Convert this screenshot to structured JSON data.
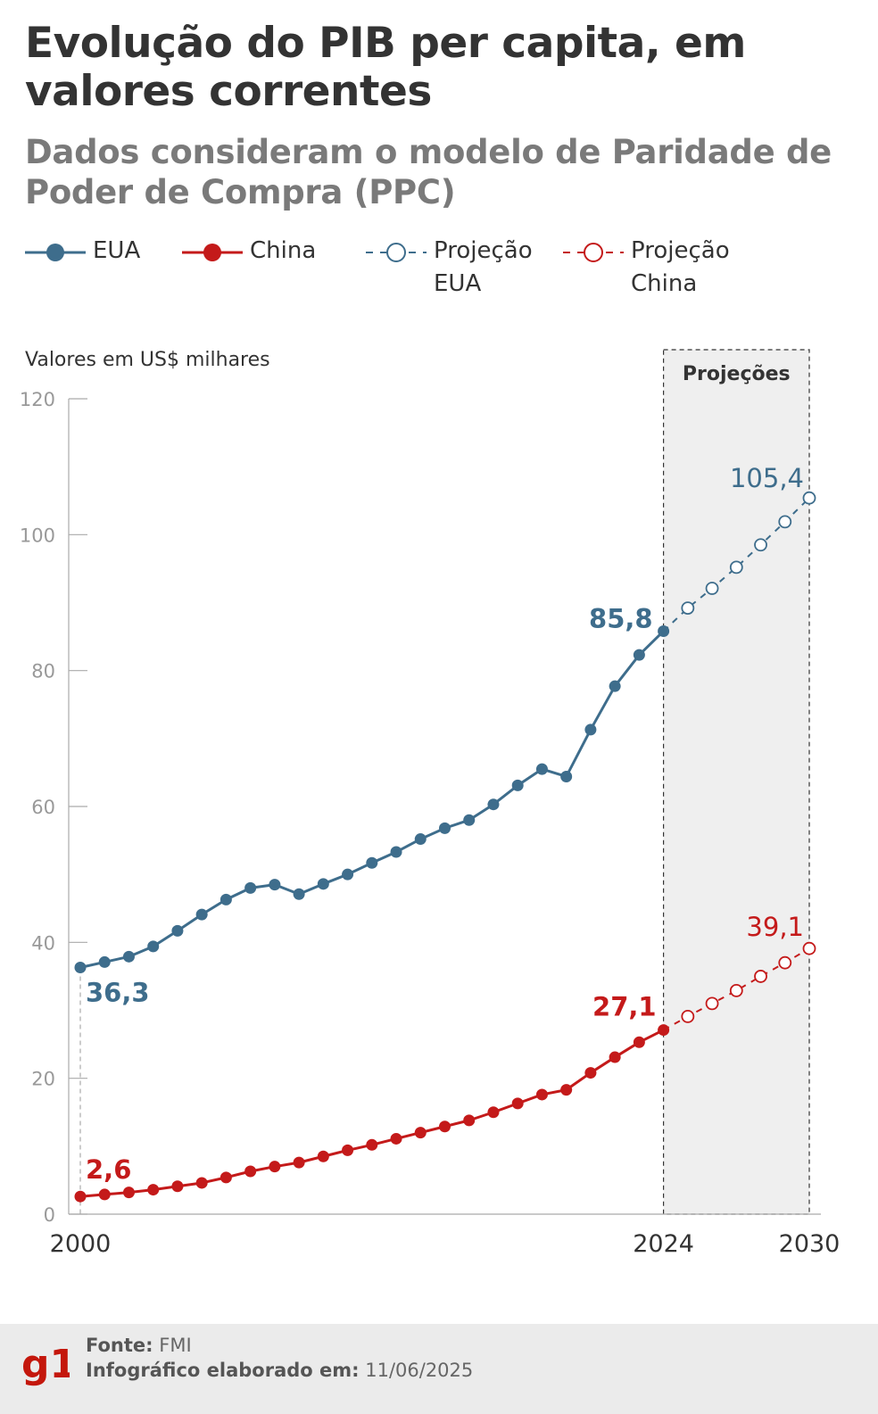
{
  "title": "Evolução do PIB per capita, em valores correntes",
  "subtitle": "Dados consideram o modelo de Paridade de Poder de Compra (PPC)",
  "legend": {
    "eua": "EUA",
    "china": "China",
    "proj_eua": [
      "Projeção",
      "EUA"
    ],
    "proj_china": [
      "Projeção",
      "China"
    ]
  },
  "colors": {
    "eua": "#3e6d8c",
    "china": "#c41a1a",
    "projection_band": "#efefef",
    "axis": "#aaaaaa",
    "text": "#333333"
  },
  "chart_data": {
    "type": "line",
    "title": "Evolução do PIB per capita, em valores correntes",
    "ylabel": "Valores em US$ milhares",
    "xlabel": "",
    "ylim": [
      0,
      120
    ],
    "yticks": [
      0,
      20,
      40,
      60,
      80,
      100,
      120
    ],
    "xlim": [
      2000,
      2030
    ],
    "xtick_labels": [
      "2000",
      "2024",
      "2030"
    ],
    "projection_label": "Projeções",
    "projection_start": 2024,
    "series": [
      {
        "name": "EUA",
        "x": [
          2000,
          2001,
          2002,
          2003,
          2004,
          2005,
          2006,
          2007,
          2008,
          2009,
          2010,
          2011,
          2012,
          2013,
          2014,
          2015,
          2016,
          2017,
          2018,
          2019,
          2020,
          2021,
          2022,
          2023,
          2024
        ],
        "values": [
          36.3,
          37.1,
          37.9,
          39.4,
          41.7,
          44.1,
          46.3,
          48.0,
          48.5,
          47.1,
          48.6,
          50.0,
          51.7,
          53.3,
          55.2,
          56.8,
          58.0,
          60.3,
          63.1,
          65.5,
          64.4,
          71.3,
          77.7,
          82.3,
          85.8
        ]
      },
      {
        "name": "China",
        "x": [
          2000,
          2001,
          2002,
          2003,
          2004,
          2005,
          2006,
          2007,
          2008,
          2009,
          2010,
          2011,
          2012,
          2013,
          2014,
          2015,
          2016,
          2017,
          2018,
          2019,
          2020,
          2021,
          2022,
          2023,
          2024
        ],
        "values": [
          2.6,
          2.9,
          3.2,
          3.6,
          4.1,
          4.6,
          5.4,
          6.3,
          7.0,
          7.6,
          8.5,
          9.4,
          10.2,
          11.1,
          12.0,
          12.9,
          13.8,
          15.0,
          16.3,
          17.6,
          18.3,
          20.8,
          23.1,
          25.3,
          27.1
        ]
      },
      {
        "name": "Projeção EUA",
        "projection": true,
        "x": [
          2024,
          2025,
          2026,
          2027,
          2028,
          2029,
          2030
        ],
        "values": [
          85.8,
          89.2,
          92.1,
          95.2,
          98.5,
          101.9,
          105.4
        ]
      },
      {
        "name": "Projeção China",
        "projection": true,
        "x": [
          2024,
          2025,
          2026,
          2027,
          2028,
          2029,
          2030
        ],
        "values": [
          27.1,
          29.1,
          31.0,
          32.9,
          35.0,
          37.0,
          39.1
        ]
      }
    ],
    "annotations": [
      {
        "series": "EUA",
        "x": 2000,
        "text": "36,3"
      },
      {
        "series": "EUA",
        "x": 2024,
        "text": "85,8"
      },
      {
        "series": "Projeção EUA",
        "x": 2030,
        "text": "105,4"
      },
      {
        "series": "China",
        "x": 2000,
        "text": "2,6"
      },
      {
        "series": "China",
        "x": 2024,
        "text": "27,1"
      },
      {
        "series": "Projeção China",
        "x": 2030,
        "text": "39,1"
      }
    ]
  },
  "footer": {
    "logo_text": "g1",
    "source_label": "Fonte:",
    "source_value": "FMI",
    "date_label": "Infográfico elaborado em:",
    "date_value": "11/06/2025"
  }
}
